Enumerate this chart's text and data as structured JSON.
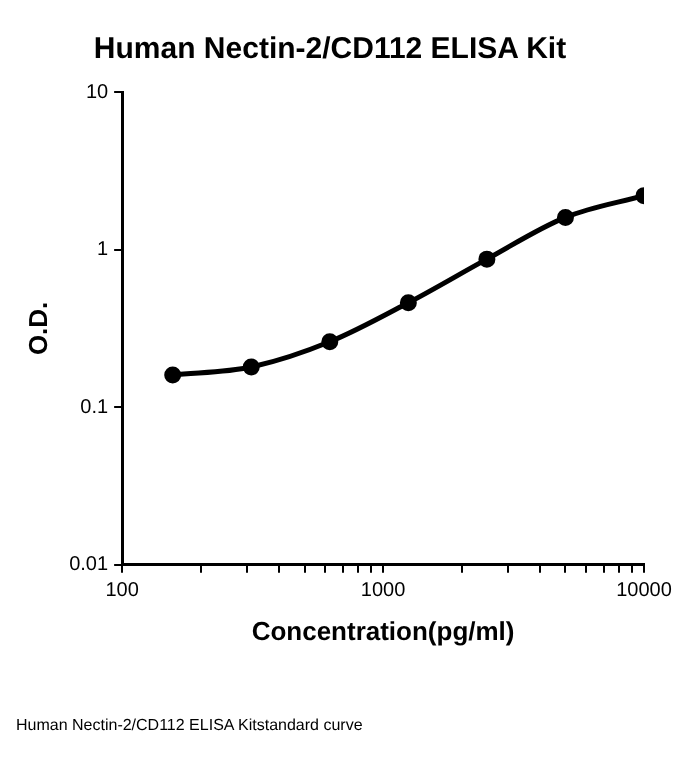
{
  "chart_data": {
    "type": "line",
    "title": "Human Nectin-2/CD112 ELISA Kit",
    "xlabel": "Concentration(pg/ml)",
    "ylabel": "O.D.",
    "x": [
      156.25,
      312.5,
      625,
      1250,
      2500,
      5000,
      10000
    ],
    "series": [
      {
        "color": "#000000",
        "values": [
          0.16,
          0.18,
          0.26,
          0.46,
          0.87,
          1.6,
          2.2
        ]
      }
    ],
    "log": "xy",
    "xlim": [
      100,
      10000
    ],
    "ylim": [
      0.01,
      10
    ],
    "xticks": [
      100,
      {
        "value": 200,
        "label": null
      },
      {
        "value": 300,
        "label": null
      },
      {
        "value": 400,
        "label": null
      },
      {
        "value": 500,
        "label": null
      },
      {
        "value": 600,
        "label": null
      },
      {
        "value": 700,
        "label": null
      },
      {
        "value": 800,
        "label": null
      },
      {
        "value": 900,
        "label": null
      },
      1000,
      {
        "value": 2000,
        "label": null
      },
      {
        "value": 3000,
        "label": null
      },
      {
        "value": 4000,
        "label": null
      },
      {
        "value": 5000,
        "label": null
      },
      {
        "value": 6000,
        "label": null
      },
      {
        "value": 7000,
        "label": null
      },
      {
        "value": 8000,
        "label": null
      },
      {
        "value": 9000,
        "label": null
      },
      10000
    ],
    "yticks": [
      0.01,
      0.1,
      1,
      10
    ],
    "grid": false,
    "legend": false,
    "marker": "circle",
    "line_style": "solid",
    "annotations": [
      "Human Nectin-2/CD112 ELISA Kitstandard curve"
    ]
  }
}
